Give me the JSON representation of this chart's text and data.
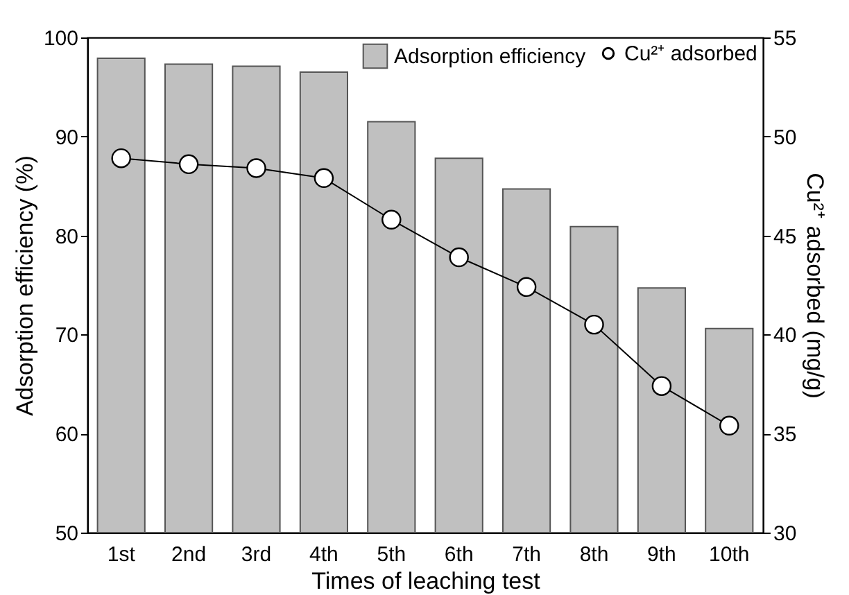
{
  "chart_data": {
    "type": "bar",
    "xlabel": "Times of leaching test",
    "ylabel": "Adsorption efficiency (%)",
    "y2label": "Cu²⁺ adsorbed (mg/g)",
    "categories": [
      "1st",
      "2nd",
      "3rd",
      "4th",
      "5th",
      "6th",
      "7th",
      "8th",
      "9th",
      "10th"
    ],
    "series": [
      {
        "name": "Adsorption efficiency",
        "color": "#c0c0c0",
        "values": [
          97.9,
          97.3,
          97.1,
          96.5,
          91.5,
          87.8,
          84.7,
          80.9,
          74.7,
          70.6
        ]
      },
      {
        "name": "Cu²⁺ adsorbed",
        "type": "line",
        "axis": "y2",
        "color": "#000000",
        "marker": "circle",
        "values": [
          48.9,
          48.6,
          48.4,
          47.9,
          45.8,
          43.9,
          42.4,
          40.5,
          37.4,
          35.4
        ]
      }
    ],
    "ylim": [
      50,
      100
    ],
    "yticks": [
      50,
      60,
      70,
      80,
      90,
      100
    ],
    "y2lim": [
      30,
      55
    ],
    "y2ticks": [
      30,
      35,
      40,
      45,
      50,
      55
    ],
    "legend": "top right"
  }
}
